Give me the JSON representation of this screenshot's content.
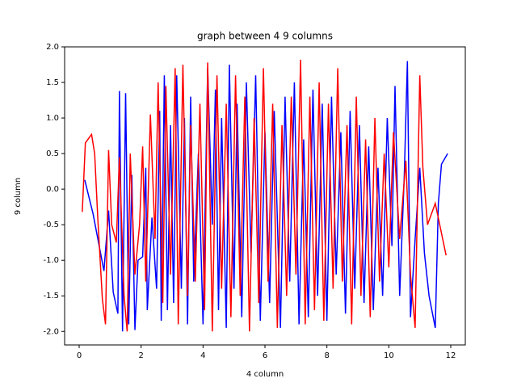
{
  "chart_data": {
    "type": "line",
    "title": "graph between 4 9 columns",
    "x_label": "4 column",
    "y_label": "9 column",
    "xlim": [
      -0.47,
      12.47
    ],
    "ylim": [
      -2.19,
      2.0
    ],
    "xticks": [
      0,
      2,
      4,
      6,
      8,
      10,
      12
    ],
    "yticks": [
      {
        "value": -2,
        "label": "-2.0"
      },
      {
        "value": -1.5,
        "label": "-1.5"
      },
      {
        "value": -1,
        "label": "-1.0"
      },
      {
        "value": -0.5,
        "label": "-0.5"
      },
      {
        "value": 0,
        "label": "0.0"
      },
      {
        "value": 0.5,
        "label": "0.5"
      },
      {
        "value": 1,
        "label": "1.0"
      },
      {
        "value": 1.5,
        "label": "1.5"
      },
      {
        "value": 2,
        "label": "2.0"
      }
    ],
    "series": [
      {
        "color": "#0000ff",
        "x": [
          0.18,
          0.45,
          0.8,
          0.95,
          1.1,
          1.25,
          1.3,
          1.4,
          1.5,
          1.6,
          1.7,
          1.8,
          1.9,
          2.05,
          2.15,
          2.2,
          2.35,
          2.5,
          2.6,
          2.65,
          2.75,
          2.85,
          2.95,
          3.05,
          3.15,
          3.3,
          3.4,
          3.5,
          3.6,
          3.7,
          3.85,
          4.0,
          4.15,
          4.3,
          4.4,
          4.5,
          4.6,
          4.75,
          4.85,
          5.0,
          5.1,
          5.25,
          5.4,
          5.55,
          5.7,
          5.85,
          6.0,
          6.15,
          6.3,
          6.5,
          6.65,
          6.8,
          6.95,
          7.1,
          7.25,
          7.4,
          7.55,
          7.7,
          7.85,
          8.0,
          8.15,
          8.3,
          8.45,
          8.6,
          8.75,
          8.9,
          9.05,
          9.2,
          9.35,
          9.5,
          9.65,
          9.8,
          9.95,
          10.1,
          10.2,
          10.35,
          10.5,
          10.6,
          10.7,
          10.85,
          11.0,
          11.15,
          11.3,
          11.5,
          11.6,
          11.7,
          11.9
        ],
        "values": [
          0.13,
          -0.35,
          -1.15,
          -0.3,
          -1.45,
          -1.75,
          1.38,
          -2.0,
          1.35,
          -1.9,
          0.2,
          -1.98,
          -1.0,
          -0.95,
          0.3,
          -1.7,
          -0.4,
          -1.4,
          1.1,
          -1.85,
          1.6,
          -1.7,
          0.9,
          -1.6,
          1.6,
          -1.4,
          1.0,
          -1.9,
          1.3,
          -1.3,
          0.5,
          -1.9,
          1.7,
          -0.5,
          1.4,
          -1.7,
          1.0,
          -1.95,
          1.75,
          -1.4,
          1.2,
          -1.8,
          1.5,
          -0.9,
          1.6,
          -1.85,
          0.8,
          -1.6,
          1.1,
          -1.95,
          1.3,
          -1.3,
          1.5,
          -1.9,
          0.7,
          -1.8,
          1.4,
          -1.5,
          1.2,
          -1.85,
          1.3,
          -1.2,
          0.8,
          -1.75,
          1.1,
          -1.4,
          0.9,
          -1.6,
          0.6,
          -1.7,
          0.3,
          -1.5,
          1.0,
          -0.8,
          1.45,
          -1.5,
          0.2,
          1.8,
          -1.8,
          -0.7,
          0.3,
          -0.9,
          -1.5,
          -1.95,
          -0.2,
          0.35,
          0.5
        ]
      },
      {
        "color": "#ff0000",
        "x": [
          0.1,
          0.2,
          0.4,
          0.5,
          0.6,
          0.75,
          0.85,
          0.95,
          1.05,
          1.2,
          1.3,
          1.45,
          1.55,
          1.65,
          1.8,
          1.95,
          2.05,
          2.15,
          2.3,
          2.45,
          2.55,
          2.7,
          2.8,
          2.95,
          3.1,
          3.2,
          3.35,
          3.5,
          3.6,
          3.75,
          3.9,
          4.05,
          4.15,
          4.3,
          4.45,
          4.6,
          4.75,
          4.9,
          5.05,
          5.2,
          5.35,
          5.5,
          5.65,
          5.8,
          5.95,
          6.1,
          6.25,
          6.4,
          6.55,
          6.7,
          6.85,
          7.0,
          7.15,
          7.3,
          7.45,
          7.6,
          7.75,
          7.9,
          8.05,
          8.2,
          8.35,
          8.5,
          8.65,
          8.8,
          8.95,
          9.1,
          9.25,
          9.4,
          9.55,
          9.7,
          9.85,
          10.0,
          10.15,
          10.35,
          10.55,
          10.7,
          10.85,
          11.0,
          11.1,
          11.25,
          11.5,
          11.85
        ],
        "values": [
          -0.32,
          0.65,
          0.77,
          0.5,
          -0.4,
          -1.55,
          -1.9,
          0.55,
          -0.5,
          -0.75,
          0.45,
          -1.5,
          -2.0,
          0.5,
          -1.2,
          -0.5,
          0.6,
          -1.3,
          1.05,
          -0.7,
          1.5,
          -1.6,
          1.45,
          -1.2,
          1.7,
          -1.9,
          1.75,
          -1.5,
          0.9,
          -1.3,
          1.2,
          -1.7,
          1.78,
          -2.0,
          1.6,
          -1.4,
          1.2,
          -1.8,
          1.6,
          -1.5,
          1.3,
          -2.0,
          1.0,
          -1.6,
          1.7,
          -1.3,
          1.2,
          -1.95,
          0.9,
          -1.5,
          1.3,
          -1.2,
          1.82,
          -1.9,
          1.3,
          -1.7,
          1.5,
          -1.85,
          1.2,
          -1.4,
          1.7,
          -1.3,
          0.9,
          -1.9,
          1.3,
          -1.5,
          0.7,
          -1.8,
          1.0,
          -1.3,
          0.5,
          -1.1,
          0.8,
          -0.7,
          0.4,
          -1.2,
          -1.95,
          1.6,
          0.3,
          -0.5,
          -0.2,
          -0.93
        ]
      }
    ]
  }
}
